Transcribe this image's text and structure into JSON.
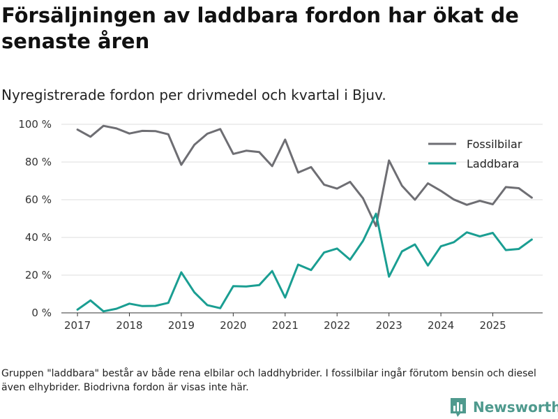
{
  "title": "Försäljningen av laddbara fordon har ökat de senaste åren",
  "subtitle": "Nyregistrerade fordon per drivmedel och kvartal i Bjuv.",
  "note": "Gruppen \"laddbara\" består av både rena elbilar och laddhybrider. I fossilbilar ingår förutom bensin och diesel även elhybrider. Biodrivna fordon är visas inte här.",
  "brand": {
    "name": "Newsworthy"
  },
  "chart_data": {
    "type": "line",
    "title": "Försäljningen av laddbara fordon har ökat de senaste åren",
    "xlabel": "",
    "ylabel": "",
    "x": [
      2017.0,
      2017.25,
      2017.5,
      2017.75,
      2018.0,
      2018.25,
      2018.5,
      2018.75,
      2019.0,
      2019.25,
      2019.5,
      2019.75,
      2020.0,
      2020.25,
      2020.5,
      2020.75,
      2021.0,
      2021.25,
      2021.5,
      2021.75,
      2022.0,
      2022.25,
      2022.5,
      2022.75,
      2023.0,
      2023.25,
      2023.5,
      2023.75,
      2024.0,
      2024.25,
      2024.5,
      2024.75,
      2025.0,
      2025.25,
      2025.5,
      2025.75
    ],
    "xlim": [
      2016.69,
      2025.96
    ],
    "ylim": [
      0,
      100
    ],
    "xticks": [
      {
        "value": 2017,
        "label": "2017"
      },
      {
        "value": 2018,
        "label": "2018"
      },
      {
        "value": 2019,
        "label": "2019"
      },
      {
        "value": 2020,
        "label": "2020"
      },
      {
        "value": 2021,
        "label": "2021"
      },
      {
        "value": 2022,
        "label": "2022"
      },
      {
        "value": 2023,
        "label": "2023"
      },
      {
        "value": 2024,
        "label": "2024"
      },
      {
        "value": 2025,
        "label": "2025"
      }
    ],
    "yticks": [
      {
        "value": 0,
        "label": "0 %"
      },
      {
        "value": 20,
        "label": "20 %"
      },
      {
        "value": 40,
        "label": "40 %"
      },
      {
        "value": 60,
        "label": "60 %"
      },
      {
        "value": 80,
        "label": "80 %"
      },
      {
        "value": 100,
        "label": "100 %"
      }
    ],
    "legend_position": "top-right",
    "series": [
      {
        "name": "Fossilbilar",
        "color": "#6e6e73",
        "values": [
          97.2,
          93.4,
          99.2,
          97.8,
          95.1,
          96.5,
          96.4,
          94.7,
          78.5,
          89.1,
          95.0,
          97.5,
          84.3,
          86.0,
          85.3,
          77.8,
          91.9,
          74.4,
          77.3,
          68.0,
          65.9,
          69.5,
          60.7,
          46.0,
          80.8,
          67.4,
          60.0,
          68.7,
          64.7,
          60.1,
          57.3,
          59.4,
          57.6,
          66.7,
          66.1,
          61.1
        ]
      },
      {
        "name": "Laddbara",
        "color": "#1a9e92",
        "values": [
          1.7,
          6.6,
          0.8,
          2.2,
          4.9,
          3.6,
          3.7,
          5.3,
          21.5,
          10.9,
          4.1,
          2.5,
          14.2,
          14.0,
          14.7,
          22.2,
          8.1,
          25.6,
          22.7,
          32.0,
          34.1,
          28.2,
          38.2,
          52.6,
          19.2,
          32.6,
          36.3,
          25.1,
          35.3,
          37.5,
          42.7,
          40.6,
          42.4,
          33.3,
          33.9,
          38.9
        ]
      }
    ]
  }
}
